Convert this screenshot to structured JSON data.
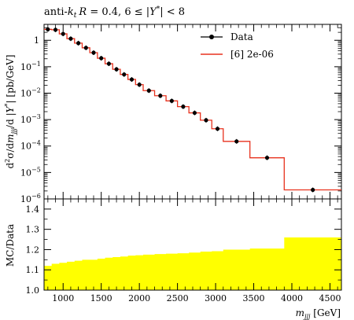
{
  "chart_data": [
    {
      "type": "line",
      "title": "anti-kt R = 0.4, 6 ≤ |Y*| < 8",
      "title_parts": {
        "anti": "anti-",
        "k": "k",
        "t": "t",
        "R": "R",
        "eq": " = 0.4, 6 ≤ |",
        "Y": "Y",
        "star": "*",
        "tail": "| < 8"
      },
      "ylabel": "d²σ/dm_jjj/d|Y*| [pb/GeV]",
      "ylabel_parts": {
        "d": "d",
        "two": "2",
        "sig": "σ/d",
        "m": "m",
        "sub": "jjj",
        "mid": "/d |",
        "Y": "Y",
        "star": "*",
        "end": "| [pb/GeV]"
      },
      "yscale": "log",
      "ylim": [
        1e-06,
        4
      ],
      "xlim": [
        750,
        4650
      ],
      "ytick_labels": [
        {
          "v": 1,
          "base": "1",
          "exp": ""
        },
        {
          "v": 0.1,
          "base": "10",
          "exp": "−1"
        },
        {
          "v": 0.01,
          "base": "10",
          "exp": "−2"
        },
        {
          "v": 0.001,
          "base": "10",
          "exp": "−3"
        },
        {
          "v": 0.0001,
          "base": "10",
          "exp": "−4"
        },
        {
          "v": 1e-05,
          "base": "10",
          "exp": "−5"
        },
        {
          "v": 1e-06,
          "base": "10",
          "exp": "−6"
        }
      ],
      "legend": {
        "position": "top-right",
        "data_label": "Data",
        "mc_label": "[6] 2e-06"
      },
      "colors": {
        "data": "#000000",
        "mc": "#e8321e"
      },
      "bin_edges": [
        750,
        850,
        950,
        1050,
        1150,
        1250,
        1350,
        1450,
        1550,
        1650,
        1750,
        1850,
        1950,
        2050,
        2200,
        2350,
        2500,
        2650,
        2800,
        2950,
        3100,
        3450,
        3900,
        4650
      ],
      "data_values": [
        2.6,
        2.5,
        1.75,
        1.15,
        0.78,
        0.52,
        0.34,
        0.21,
        0.13,
        0.08,
        0.051,
        0.033,
        0.021,
        0.0125,
        0.008,
        0.0051,
        0.0031,
        0.0018,
        0.00095,
        0.00045,
        0.00015,
        3.6e-05,
        2.2e-06
      ],
      "mc_values": [
        2.6,
        2.5,
        1.75,
        1.15,
        0.78,
        0.52,
        0.34,
        0.21,
        0.13,
        0.08,
        0.051,
        0.033,
        0.021,
        0.0125,
        0.008,
        0.0051,
        0.0031,
        0.0018,
        0.00095,
        0.00045,
        0.00015,
        3.6e-05,
        2.2e-06
      ]
    },
    {
      "type": "area",
      "ylabel": "MC/Data",
      "xlabel_parts": {
        "m": "m",
        "sub": "jjj",
        "unit": " [GeV]"
      },
      "ylim": [
        1.0,
        1.45
      ],
      "xlim": [
        750,
        4650
      ],
      "xticks": [
        1000,
        1500,
        2000,
        2500,
        3000,
        3500,
        4000,
        4500
      ],
      "xtick_labels": [
        "1000",
        "1500",
        "2000",
        "2500",
        "3000",
        "3500",
        "4000",
        "4500"
      ],
      "yticks": [
        1.0,
        1.1,
        1.2,
        1.3,
        1.4
      ],
      "ytick_labels": [
        "1.0",
        "1.1",
        "1.2",
        "1.3",
        "1.4"
      ],
      "band_color": "#ffff00",
      "band_low": [
        1.0,
        1.0,
        1.0,
        1.0,
        1.0,
        1.0,
        1.0,
        1.0,
        1.0,
        1.0,
        1.0,
        1.0,
        1.0,
        1.0,
        1.0,
        1.0,
        1.0,
        1.0,
        1.0,
        1.0,
        1.0,
        1.0,
        1.0
      ],
      "band_high": [
        1.12,
        1.13,
        1.135,
        1.14,
        1.145,
        1.15,
        1.15,
        1.155,
        1.16,
        1.163,
        1.166,
        1.17,
        1.172,
        1.175,
        1.178,
        1.18,
        1.182,
        1.185,
        1.19,
        1.192,
        1.2,
        1.205,
        1.26
      ]
    }
  ]
}
